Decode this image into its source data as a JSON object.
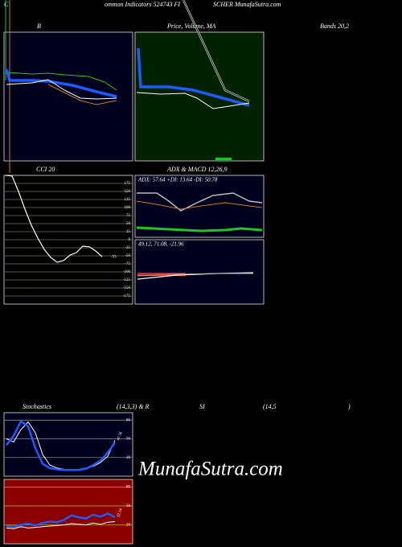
{
  "header": {
    "left": "C",
    "title": "ommon Indicators 524743 FI",
    "right": "SCHER MunafaSutra.com"
  },
  "titles": {
    "bb": "B",
    "price": "Price,  Volume,  MA",
    "bands": "Bands 20,2",
    "cci": "CCI 20",
    "adx": "ADX  & MACD 12,26,9",
    "stoch": "Stochastics",
    "stoch_params": "(14,3,3) & R",
    "rsi": "SI",
    "rsi_params": "(14,5",
    "rsi_close": ")"
  },
  "cci": {
    "ylim": [
      -200,
      200
    ],
    "yticks": [
      175,
      150,
      125,
      100,
      75,
      50,
      25,
      0,
      -25,
      -50,
      -75,
      -100,
      -125,
      -150,
      -175
    ],
    "grid_color": "#6b7a2a",
    "color": "#ffffff",
    "values": [
      200,
      198,
      150,
      95,
      45,
      5,
      -30,
      -55,
      -70,
      -65,
      -48,
      -40,
      -20,
      -22,
      -35,
      -53
    ],
    "value_label": "-53"
  },
  "adx": {
    "text": "ADX: 57.64  +DI: 13.64  -DI: 50.78"
  },
  "macd": {
    "text": "49.12, 71.08, -21.96"
  },
  "stoch": {
    "ylim": [
      -10,
      92
    ],
    "yticks": [
      80,
      50,
      20
    ],
    "series": [
      {
        "color": "#1e5bff",
        "values": [
          40,
          55,
          78,
          70,
          35,
          10,
          3,
          1,
          0,
          0,
          0,
          2,
          8,
          15,
          28,
          44
        ]
      },
      {
        "color": "#ffffff",
        "values": [
          50,
          45,
          65,
          77,
          60,
          25,
          8,
          3,
          1,
          0,
          1,
          3,
          6,
          12,
          22,
          47.56
        ]
      }
    ],
    "value_label": "47.56"
  },
  "rsi": {
    "ylim": [
      -10,
      92
    ],
    "yticks": [
      80,
      50,
      20
    ],
    "series": [
      {
        "color": "#1e5bff",
        "values": [
          18,
          17,
          20,
          22,
          19,
          23,
          25,
          24,
          28,
          35,
          32,
          30,
          36,
          33,
          38,
          32.14
        ]
      },
      {
        "color": "#ffffff",
        "values": [
          15,
          14,
          17,
          15,
          16,
          17,
          18,
          19,
          20,
          22,
          21,
          20,
          23,
          21,
          24,
          25
        ]
      }
    ],
    "value_label": "32.14"
  },
  "watermark": "MunafaSutra.com"
}
